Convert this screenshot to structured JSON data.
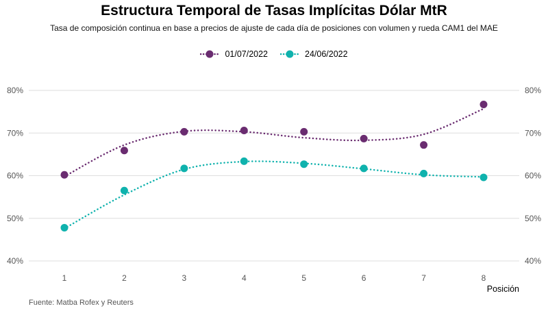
{
  "chart_data": {
    "type": "line",
    "title": "Estructura Temporal de Tasas Implícitas Dólar MtR",
    "subtitle": "Tasa de composición continua en base a precios de ajuste de cada día de posiciones con volumen y rueda CAM1 del MAE",
    "xlabel": "Posición",
    "ylabel": "",
    "caption": "Fuente: Matba Rofex y Reuters",
    "x": [
      1,
      2,
      3,
      4,
      5,
      6,
      7,
      8
    ],
    "ylim": [
      0.4,
      0.8
    ],
    "yticks": [
      0.4,
      0.5,
      0.6,
      0.7,
      0.8
    ],
    "ytick_labels": [
      "40%",
      "50%",
      "60%",
      "70%",
      "80%"
    ],
    "grid": true,
    "legend_position": "top",
    "series": [
      {
        "name": "01/07/2022",
        "color": "#6a2c70",
        "values": [
          0.602,
          0.659,
          0.703,
          0.706,
          0.703,
          0.687,
          0.672,
          0.767
        ],
        "smooth": [
          0.598,
          0.672,
          0.704,
          0.703,
          0.689,
          0.683,
          0.697,
          0.757
        ]
      },
      {
        "name": "24/06/2022",
        "color": "#0fb2ad",
        "values": [
          0.478,
          0.565,
          0.617,
          0.634,
          0.627,
          0.617,
          0.605,
          0.596
        ],
        "smooth": [
          0.476,
          0.555,
          0.615,
          0.633,
          0.629,
          0.616,
          0.602,
          0.597
        ]
      }
    ]
  }
}
